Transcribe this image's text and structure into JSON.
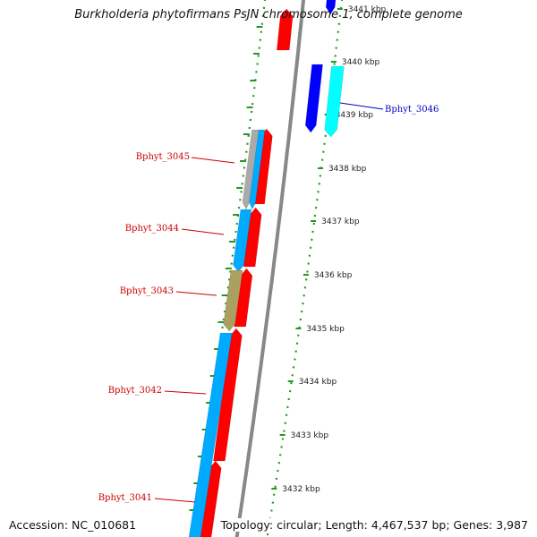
{
  "title": "Burkholderia phytofirmans PsJN chromosome 1, complete genome",
  "accession": "Accession: NC_010681",
  "topology": "Topology: circular; Length: 4,467,537 bp; Genes: 3,987",
  "scale_labels": [
    "3441 kbp",
    "3440 kbp",
    "3439 kbp",
    "3438 kbp",
    "3437 kbp",
    "3436 kbp",
    "3435 kbp",
    "3434 kbp",
    "3433 kbp",
    "3432 kbp"
  ],
  "gene_labels": [
    {
      "id": "gene-label-bphyt-3046",
      "text": "Bphyt_3046",
      "color": "#0000c0"
    },
    {
      "id": "gene-label-bphyt-3045",
      "text": "Bphyt_3045",
      "color": "#cc0000"
    },
    {
      "id": "gene-label-bphyt-3044",
      "text": "Bphyt_3044",
      "color": "#cc0000"
    },
    {
      "id": "gene-label-bphyt-3043",
      "text": "Bphyt_3043",
      "color": "#cc0000"
    },
    {
      "id": "gene-label-bphyt-3042",
      "text": "Bphyt_3042",
      "color": "#cc0000"
    },
    {
      "id": "gene-label-bphyt-3041",
      "text": "Bphyt_3041",
      "color": "#cc0000"
    }
  ],
  "colors": {
    "backbone": "#888888",
    "ruler": "#229922",
    "forward_cds": "#ff0000",
    "blue_cds": "#0000ff",
    "cyan_cds": "#00ffff",
    "light_blue_cds": "#00aaff",
    "gray_cds": "#aaaaaa",
    "olive_cds": "#aaa060"
  }
}
